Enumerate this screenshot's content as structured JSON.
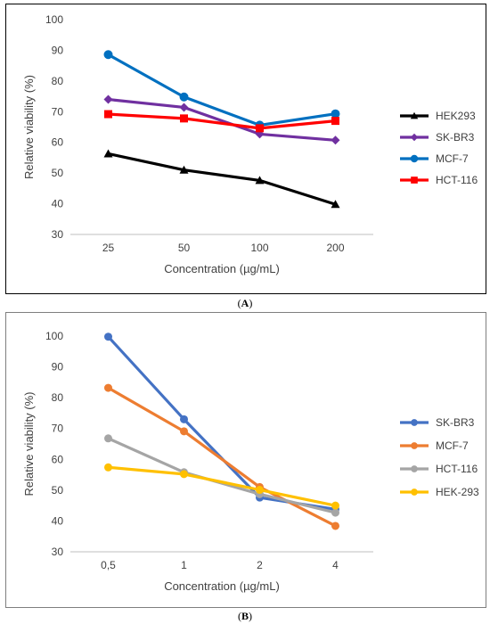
{
  "captions": {
    "a": "A",
    "b": "B"
  },
  "chart_data": [
    {
      "type": "line",
      "panel": "A",
      "title": "",
      "xlabel": "Concentration (µg/mL)",
      "ylabel": "Relative viability (%)",
      "categories": [
        "25",
        "50",
        "100",
        "200"
      ],
      "ylim": [
        30,
        100
      ],
      "yticks": [
        30,
        40,
        50,
        60,
        70,
        80,
        90,
        100
      ],
      "grid": false,
      "legend": "right",
      "series": [
        {
          "name": "HEK293",
          "values": [
            56.3,
            51.0,
            47.6,
            39.8
          ],
          "color": "#000000",
          "marker": "triangle"
        },
        {
          "name": "SK-BR3",
          "values": [
            74.0,
            71.4,
            62.7,
            60.7
          ],
          "color": "#7030a0",
          "marker": "diamond"
        },
        {
          "name": "MCF-7",
          "values": [
            88.6,
            74.8,
            65.6,
            69.3
          ],
          "color": "#0070c0",
          "marker": "circle"
        },
        {
          "name": "HCT-116",
          "values": [
            69.2,
            67.8,
            64.6,
            67.0
          ],
          "color": "#ff0000",
          "marker": "square"
        }
      ]
    },
    {
      "type": "line",
      "panel": "B",
      "title": "",
      "xlabel": "Concentration (µg/mL)",
      "ylabel": "Relative viability (%)",
      "categories": [
        "0,5",
        "1",
        "2",
        "4"
      ],
      "ylim": [
        30,
        100
      ],
      "yticks": [
        30,
        40,
        50,
        60,
        70,
        80,
        90,
        100
      ],
      "grid": false,
      "legend": "right",
      "series": [
        {
          "name": "SK-BR3",
          "values": [
            99.8,
            73.0,
            47.6,
            43.8
          ],
          "color": "#4472c4",
          "marker": "circle"
        },
        {
          "name": "MCF-7",
          "values": [
            83.2,
            69.1,
            51.0,
            38.4
          ],
          "color": "#ed7d31",
          "marker": "circle"
        },
        {
          "name": "HCT-116",
          "values": [
            66.8,
            55.8,
            48.7,
            42.7
          ],
          "color": "#a5a5a5",
          "marker": "circle"
        },
        {
          "name": "HEK-293",
          "values": [
            57.4,
            55.2,
            50.1,
            45.0
          ],
          "color": "#ffc000",
          "marker": "circle"
        }
      ]
    }
  ]
}
